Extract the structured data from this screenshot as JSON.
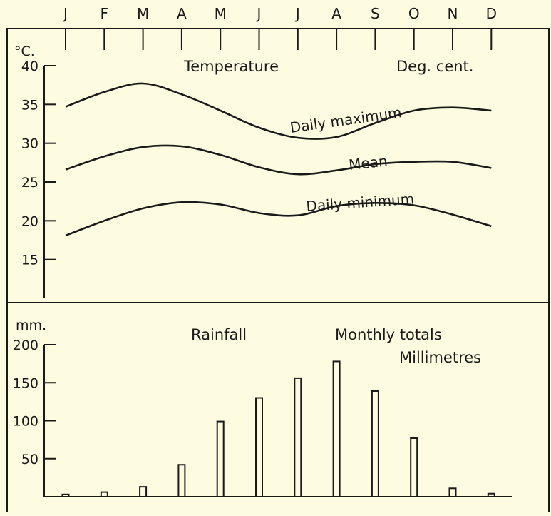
{
  "chart_data": [
    {
      "type": "line",
      "title": "Temperature",
      "unit_label": "Deg. cent.",
      "ylabel": "°C.",
      "categories": [
        "J",
        "F",
        "M",
        "A",
        "M",
        "J",
        "J",
        "A",
        "S",
        "O",
        "N",
        "D"
      ],
      "yticks": [
        15,
        20,
        25,
        30,
        35,
        40
      ],
      "ylim": [
        10,
        40
      ],
      "grid": false,
      "series": [
        {
          "name": "Daily maximum",
          "values": [
            34.7,
            36.6,
            37.7,
            36.3,
            34.2,
            32.0,
            30.7,
            30.8,
            32.6,
            34.2,
            34.6,
            34.2
          ]
        },
        {
          "name": "Mean",
          "values": [
            26.6,
            28.3,
            29.5,
            29.6,
            28.5,
            26.9,
            26.0,
            26.5,
            27.3,
            27.6,
            27.6,
            26.8
          ]
        },
        {
          "name": "Daily minimum",
          "values": [
            18.1,
            20.0,
            21.6,
            22.4,
            22.1,
            21.0,
            20.7,
            21.9,
            22.3,
            22.0,
            20.8,
            19.3
          ]
        }
      ]
    },
    {
      "type": "bar",
      "title": "Rainfall",
      "subtitle": [
        "Monthly totals",
        "Millimetres"
      ],
      "ylabel": "mm.",
      "categories": [
        "J",
        "F",
        "M",
        "A",
        "M",
        "J",
        "J",
        "A",
        "S",
        "O",
        "N",
        "D"
      ],
      "values": [
        3,
        6,
        13,
        42,
        99,
        130,
        156,
        178,
        139,
        77,
        11,
        4
      ],
      "yticks": [
        50,
        100,
        150,
        200
      ],
      "ylim": [
        0,
        200
      ],
      "grid": false
    }
  ]
}
